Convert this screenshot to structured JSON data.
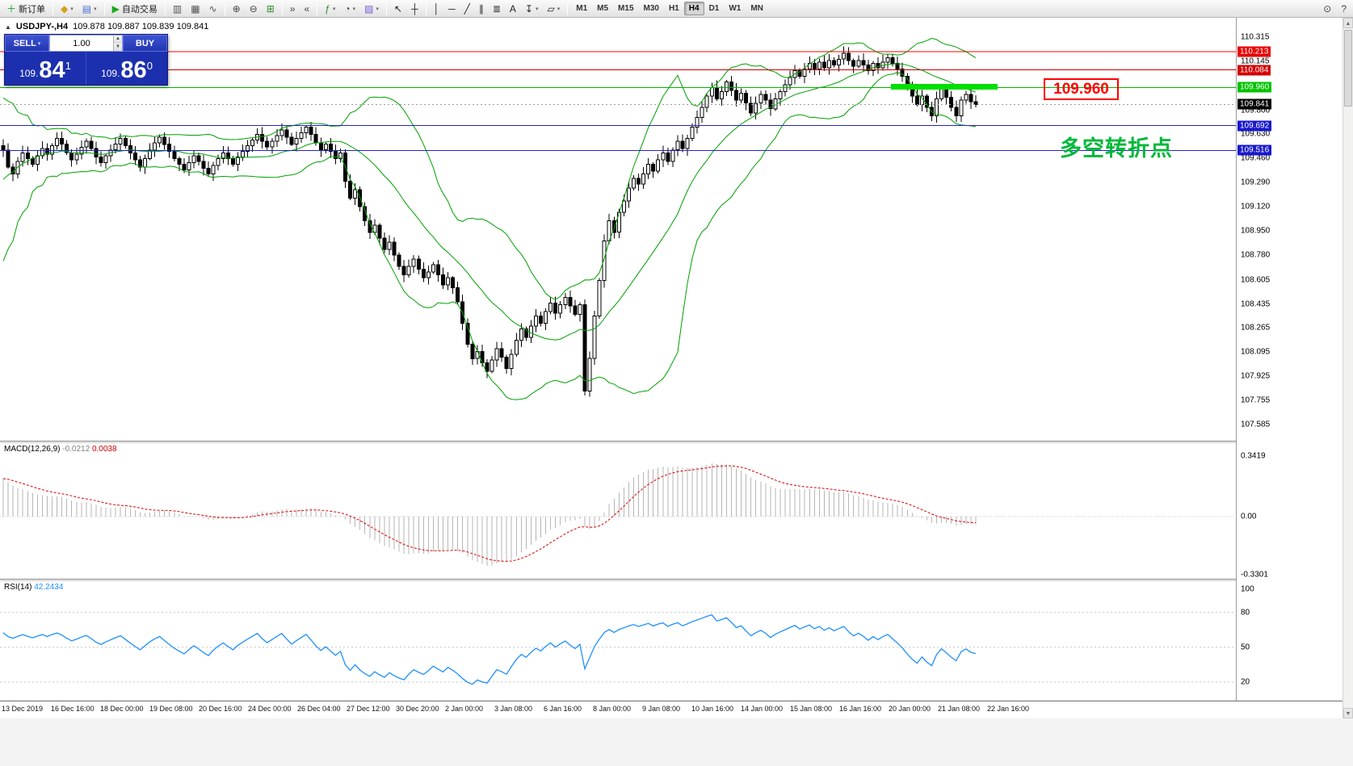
{
  "toolbar": {
    "groups": [
      {
        "items": [
          {
            "name": "new-order-button",
            "glyph": "＋",
            "color": "#1fa31f",
            "label": "新订单"
          }
        ]
      },
      {
        "items": [
          {
            "name": "new-chart-button",
            "glyph": "◆",
            "color": "#d4a017",
            "caret": true
          },
          {
            "name": "profiles-button",
            "glyph": "▤",
            "color": "#4a6fd4",
            "caret": true
          }
        ]
      },
      {
        "items": [
          {
            "name": "auto-trading-button",
            "glyph": "▶",
            "color": "#18a818",
            "label": "自动交易"
          }
        ]
      },
      {
        "items": [
          {
            "name": "bar-chart-button",
            "glyph": "▥",
            "color": "#555555"
          },
          {
            "name": "candlestick-chart-button",
            "glyph": "▦",
            "color": "#555555"
          },
          {
            "name": "line-chart-button",
            "glyph": "∿",
            "color": "#555555"
          }
        ]
      },
      {
        "items": [
          {
            "name": "zoom-in-button",
            "glyph": "⊕",
            "color": "#444444"
          },
          {
            "name": "zoom-out-button",
            "glyph": "⊖",
            "color": "#444444"
          },
          {
            "name": "tile-windows-button",
            "glyph": "⊞",
            "color": "#2e8b2e"
          }
        ]
      },
      {
        "items": [
          {
            "name": "auto-scroll-button",
            "glyph": "»",
            "color": "#444444"
          },
          {
            "name": "chart-shift-button",
            "glyph": "«",
            "color": "#444444"
          }
        ]
      },
      {
        "items": [
          {
            "name": "indicators-button",
            "glyph": "ƒ",
            "color": "#2e8b2e",
            "caret": true
          },
          {
            "name": "periods-button",
            "glyph": "◔",
            "color": "#444444",
            "caret": true
          },
          {
            "name": "templates-button",
            "glyph": "▨",
            "color": "#7a5ad4",
            "caret": true
          }
        ]
      },
      {
        "items": [
          {
            "name": "cursor-button",
            "glyph": "↖",
            "color": "#222222"
          },
          {
            "name": "crosshair-button",
            "glyph": "┼",
            "color": "#222222"
          }
        ]
      },
      {
        "items": [
          {
            "name": "vertical-line-button",
            "glyph": "│",
            "color": "#222222"
          },
          {
            "name": "horizontal-line-button",
            "glyph": "─",
            "color": "#222222"
          },
          {
            "name": "trendline-button",
            "glyph": "╱",
            "color": "#222222"
          },
          {
            "name": "channel-button",
            "glyph": "∥",
            "color": "#222222"
          },
          {
            "name": "fibonacci-button",
            "glyph": "≣",
            "color": "#222222"
          },
          {
            "name": "text-button",
            "glyph": "A",
            "color": "#222222"
          },
          {
            "name": "arrows-button",
            "glyph": "↧",
            "color": "#222222",
            "caret": true
          },
          {
            "name": "shapes-button",
            "glyph": "▱",
            "color": "#222222",
            "caret": true
          }
        ]
      }
    ],
    "timeframes": [
      "M1",
      "M5",
      "M15",
      "M30",
      "H1",
      "H4",
      "D1",
      "W1",
      "MN"
    ],
    "active_timeframe": "H4",
    "right_items": [
      {
        "name": "search-button",
        "glyph": "⊙",
        "color": "#444444"
      },
      {
        "name": "help-button",
        "glyph": "?",
        "color": "#444444"
      }
    ]
  },
  "chart": {
    "title": "USDJPY-,H4",
    "ohlc": "109.878 109.887 109.839 109.841"
  },
  "trade_panel": {
    "sell_label": "SELL",
    "buy_label": "BUY",
    "volume": "1.00",
    "bid_prefix": "109.",
    "bid_big": "84",
    "bid_sup": "1",
    "ask_prefix": "109.",
    "ask_big": "86",
    "ask_sup": "0"
  },
  "annotations": {
    "price_box": "109.960",
    "cn_note": "多空转折点"
  },
  "price_axis": {
    "ticks": [
      "110.315",
      "110.145",
      "109.800",
      "109.630",
      "109.460",
      "109.290",
      "109.120",
      "108.950",
      "108.780",
      "108.605",
      "108.435",
      "108.265",
      "108.095",
      "107.925",
      "107.755",
      "107.585"
    ],
    "labels": [
      {
        "value": "110.213",
        "price": 110.213,
        "bg": "#e80000",
        "line": "#ff0000"
      },
      {
        "value": "110.084",
        "price": 110.084,
        "bg": "#d40000",
        "line": "#cc0000"
      },
      {
        "value": "109.960",
        "price": 109.96,
        "bg": "#00c400",
        "line": "#00b400"
      },
      {
        "value": "109.841",
        "price": 109.841,
        "bg": "#000000",
        "dashed": true
      },
      {
        "value": "109.692",
        "price": 109.692,
        "bg": "#1818cc",
        "line": "#2222cc"
      },
      {
        "value": "109.516",
        "price": 109.516,
        "bg": "#1818cc",
        "line": "#2222cc"
      }
    ]
  },
  "macd": {
    "label": "MACD(12,26,9)",
    "value_main": "-0.0212",
    "value_signal": "0.0038",
    "axis": [
      "0.3419",
      "0.00",
      "-0.3301"
    ]
  },
  "rsi": {
    "label": "RSI(14)",
    "value": "42.2434",
    "axis": [
      "100",
      "80",
      "50",
      "20"
    ]
  },
  "time_axis": [
    "13 Dec 2019",
    "16 Dec 16:00",
    "18 Dec 00:00",
    "19 Dec 08:00",
    "20 Dec 16:00",
    "24 Dec 00:00",
    "26 Dec 04:00",
    "27 Dec 12:00",
    "30 Dec 20:00",
    "2 Jan 00:00",
    "3 Jan 08:00",
    "6 Jan 16:00",
    "8 Jan 00:00",
    "9 Jan 08:00",
    "10 Jan 16:00",
    "14 Jan 00:00",
    "15 Jan 08:00",
    "16 Jan 16:00",
    "20 Jan 00:00",
    "21 Jan 08:00",
    "22 Jan 16:00"
  ],
  "chart_data": {
    "type": "candlestick",
    "symbol": "USDJPY-",
    "timeframe": "H4",
    "open": "109.878",
    "high": "109.887",
    "low": "109.839",
    "close": "109.841",
    "y_axis": {
      "visible_min": 107.585,
      "visible_max": 110.315
    },
    "indicators": {
      "bollinger": {
        "period": 20,
        "deviation": 2,
        "color": "#00A000"
      },
      "macd": {
        "fast": 12,
        "slow": 26,
        "signal": 9,
        "value_main": -0.0212,
        "value_signal": 0.0038,
        "scale_max": 0.3419,
        "scale_min": -0.3301,
        "histogram_color": "#b6b6b6",
        "signal_color": "#dd0000"
      },
      "rsi": {
        "period": 14,
        "value": 42.2434,
        "color": "#1E90FF",
        "levels": [
          80,
          50,
          20
        ]
      }
    },
    "levels": [
      {
        "price": 110.213,
        "color": "red"
      },
      {
        "price": 110.084,
        "color": "red"
      },
      {
        "price": 109.96,
        "color": "green",
        "note": "109.960 多空转折点"
      },
      {
        "price": 109.692,
        "color": "blue"
      },
      {
        "price": 109.516,
        "color": "blue"
      }
    ],
    "prehistory": [
      108.62,
      108.78,
      108.92,
      108.73,
      109.02,
      109.15,
      108.96,
      109.24,
      109.38,
      109.2,
      109.44,
      109.58,
      109.36,
      109.54,
      109.68,
      109.46,
      109.6,
      109.5,
      109.63,
      109.55
    ],
    "closes": [
      109.52,
      109.4,
      109.35,
      109.44,
      109.5,
      109.46,
      109.42,
      109.48,
      109.53,
      109.49,
      109.55,
      109.6,
      109.56,
      109.5,
      109.45,
      109.49,
      109.54,
      109.58,
      109.53,
      109.47,
      109.43,
      109.48,
      109.52,
      109.56,
      109.6,
      109.55,
      109.5,
      109.45,
      109.4,
      109.46,
      109.52,
      109.57,
      109.61,
      109.56,
      109.51,
      109.46,
      109.42,
      109.38,
      109.43,
      109.48,
      109.44,
      109.39,
      109.35,
      109.41,
      109.46,
      109.5,
      109.46,
      109.42,
      109.47,
      109.51,
      109.55,
      109.59,
      109.63,
      109.58,
      109.54,
      109.58,
      109.62,
      109.66,
      109.61,
      109.56,
      109.6,
      109.64,
      109.68,
      109.63,
      109.57,
      109.52,
      109.56,
      109.51,
      109.46,
      109.5,
      109.3,
      109.18,
      109.24,
      109.12,
      109.02,
      108.94,
      108.99,
      108.9,
      108.82,
      108.87,
      108.78,
      108.7,
      108.64,
      108.7,
      108.75,
      108.68,
      108.62,
      108.66,
      108.71,
      108.64,
      108.57,
      108.62,
      108.55,
      108.45,
      108.3,
      108.15,
      108.05,
      108.1,
      108.02,
      107.96,
      108.04,
      108.12,
      108.06,
      107.98,
      108.08,
      108.18,
      108.26,
      108.2,
      108.28,
      108.35,
      108.3,
      108.38,
      108.44,
      108.37,
      108.43,
      108.48,
      108.42,
      108.36,
      108.43,
      107.82,
      108.05,
      108.35,
      108.6,
      108.88,
      109.02,
      108.94,
      109.08,
      109.16,
      109.25,
      109.32,
      109.28,
      109.35,
      109.42,
      109.37,
      109.45,
      109.5,
      109.44,
      109.52,
      109.58,
      109.53,
      109.6,
      109.68,
      109.75,
      109.82,
      109.9,
      109.96,
      109.88,
      109.93,
      110.0,
      109.94,
      109.87,
      109.92,
      109.85,
      109.78,
      109.85,
      109.91,
      109.87,
      109.81,
      109.88,
      109.93,
      109.98,
      110.03,
      110.08,
      110.04,
      110.09,
      110.13,
      110.09,
      110.14,
      110.1,
      110.15,
      110.12,
      110.16,
      110.2,
      110.15,
      110.11,
      110.15,
      110.12,
      110.08,
      110.13,
      110.1,
      110.14,
      110.17,
      110.13,
      110.09,
      110.04,
      109.97,
      109.9,
      109.84,
      109.9,
      109.82,
      109.76,
      109.88,
      109.95,
      109.89,
      109.82,
      109.76,
      109.87,
      109.91,
      109.86,
      109.84
    ]
  }
}
